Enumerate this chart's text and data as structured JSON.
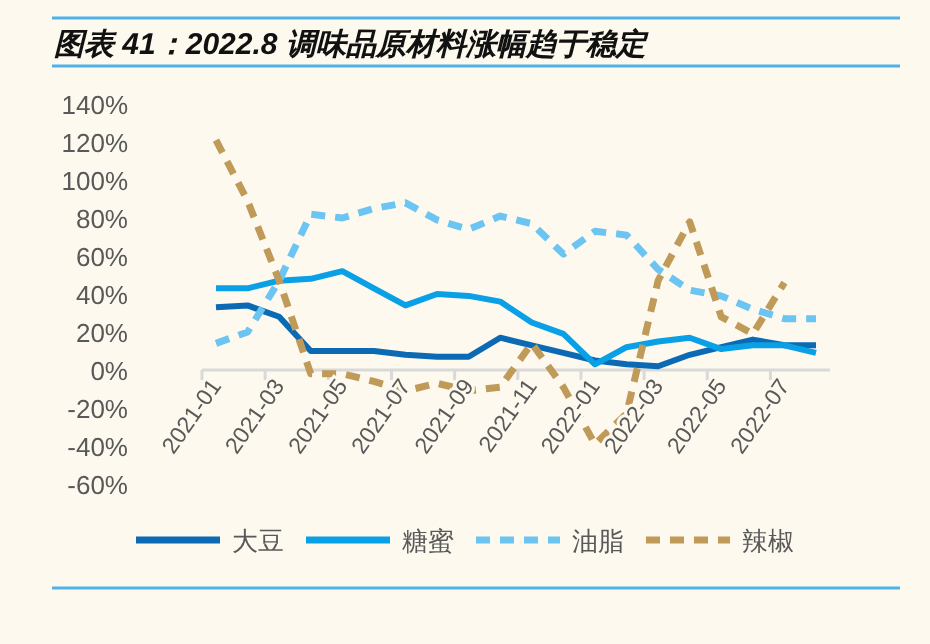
{
  "chart_data": {
    "type": "line",
    "title": "图表 41：2022.8 调味品原材料涨幅趋于稳定",
    "categories": [
      "2021-01",
      null,
      "2021-03",
      null,
      "2021-05",
      null,
      "2021-07",
      null,
      "2021-09",
      null,
      "2021-11",
      null,
      "2022-01",
      null,
      "2022-03",
      null,
      "2022-05",
      null,
      "2022-07",
      null
    ],
    "series": [
      {
        "name": "大豆",
        "color": "#0b6ab3",
        "line_style": "solid",
        "values": [
          33,
          34,
          28,
          10,
          10,
          10,
          8,
          7,
          7,
          17,
          13,
          9,
          5,
          3,
          2,
          8,
          12,
          16,
          13,
          13
        ]
      },
      {
        "name": "糖蜜",
        "color": "#0aa0e6",
        "line_style": "solid",
        "values": [
          43,
          43,
          47,
          48,
          52,
          43,
          34,
          40,
          39,
          36,
          25,
          19,
          3,
          12,
          15,
          17,
          11,
          13,
          13,
          9
        ]
      },
      {
        "name": "油脂",
        "color": "#6cc4f2",
        "line_style": "dashed",
        "values": [
          14,
          20,
          47,
          82,
          80,
          85,
          88,
          79,
          74,
          81,
          77,
          61,
          73,
          71,
          53,
          42,
          39,
          32,
          27,
          27
        ]
      },
      {
        "name": "辣椒",
        "color": "#bf9a59",
        "line_style": "dashed",
        "values": [
          121,
          89,
          47,
          -2,
          -2,
          -6,
          -11,
          -7,
          -11,
          -9,
          14,
          -9,
          -39,
          -23,
          47,
          78,
          28,
          19,
          46,
          null
        ]
      }
    ],
    "ylim": [
      -60,
      140
    ],
    "yticks": [
      {
        "value": -60,
        "label": "-60%"
      },
      {
        "value": -40,
        "label": "-40%"
      },
      {
        "value": -20,
        "label": "-20%"
      },
      {
        "value": 0,
        "label": "0%"
      },
      {
        "value": 20,
        "label": "20%"
      },
      {
        "value": 40,
        "label": "40%"
      },
      {
        "value": 60,
        "label": "60%"
      },
      {
        "value": 80,
        "label": "80%"
      },
      {
        "value": 100,
        "label": "100%"
      },
      {
        "value": 120,
        "label": "120%"
      },
      {
        "value": 140,
        "label": "140%"
      }
    ],
    "legend": "bottom"
  }
}
